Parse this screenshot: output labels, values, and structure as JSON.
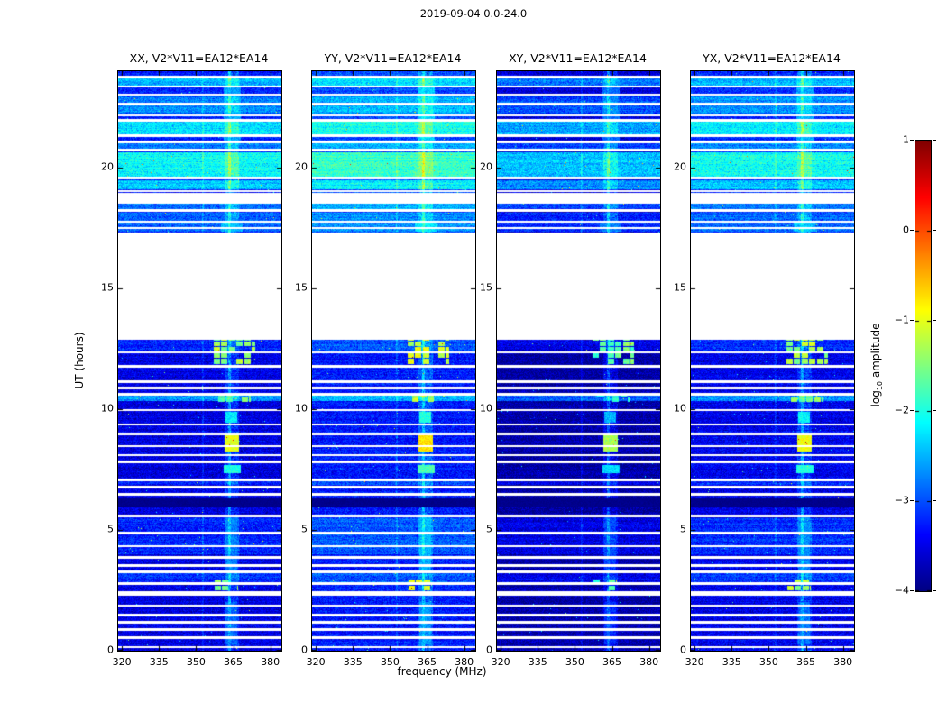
{
  "figure": {
    "colorbar_label_prefix": "log",
    "colorbar_label_sub": "10",
    "colorbar_label_suffix": " amplitude"
  },
  "chart_data": {
    "type": "heatmap",
    "title": "2019-09-04 0.0-24.0",
    "xlabel": "frequency (MHz)",
    "ylabel": "UT (hours)",
    "panels": [
      {
        "label": "XX",
        "title": "XX, V2*V11=EA12*EA14",
        "level_offset": 0.0
      },
      {
        "label": "YY",
        "title": "YY, V2*V11=EA12*EA14",
        "level_offset": 0.25
      },
      {
        "label": "XY",
        "title": "XY, V2*V11=EA12*EA14",
        "level_offset": -0.3
      },
      {
        "label": "YX",
        "title": "YX, V2*V11=EA12*EA14",
        "level_offset": 0.05
      }
    ],
    "x_range": [
      318.5,
      384.5
    ],
    "y_range": [
      0,
      24
    ],
    "x_ticks": [
      320,
      335,
      350,
      365,
      380
    ],
    "y_ticks": [
      0,
      5,
      10,
      15,
      20
    ],
    "colormap": "jet",
    "frame_color": "#000000",
    "background_color": "#ffffff",
    "colorbar": {
      "label": "log10 amplitude",
      "range": [
        -4,
        1
      ],
      "ticks": [
        1,
        0,
        -1,
        -2,
        -3,
        -4
      ]
    },
    "time_gaps_hours": [
      [
        13.02,
        17.32
      ]
    ],
    "black_times_hours": [
      [
        5.95,
        6.3
      ]
    ],
    "flagged_times_hours": [
      [
        23.72,
        23.82
      ],
      [
        23.32,
        23.42
      ],
      [
        22.98,
        23.08
      ],
      [
        22.58,
        22.68
      ],
      [
        22.12,
        22.22
      ],
      [
        21.92,
        22.02
      ],
      [
        21.28,
        21.38
      ],
      [
        21.02,
        21.12
      ],
      [
        20.68,
        20.78
      ],
      [
        19.52,
        19.62
      ],
      [
        18.98,
        19.08
      ],
      [
        18.5,
        18.95
      ],
      [
        18.18,
        18.28
      ],
      [
        17.72,
        17.82
      ],
      [
        17.45,
        17.55
      ],
      [
        12.88,
        13.02
      ],
      [
        12.3,
        12.4
      ],
      [
        11.72,
        11.82
      ],
      [
        11.08,
        11.18
      ],
      [
        10.82,
        10.92
      ],
      [
        10.58,
        10.66
      ],
      [
        9.92,
        10.02
      ],
      [
        9.32,
        9.42
      ],
      [
        8.92,
        9.02
      ],
      [
        8.45,
        8.52
      ],
      [
        8.05,
        8.15
      ],
      [
        7.78,
        7.88
      ],
      [
        7.02,
        7.12
      ],
      [
        6.72,
        6.82
      ],
      [
        6.42,
        6.52
      ],
      [
        5.52,
        5.62
      ],
      [
        4.82,
        4.92
      ],
      [
        4.28,
        4.38
      ],
      [
        3.82,
        3.92
      ],
      [
        3.48,
        3.58
      ],
      [
        3.22,
        3.32
      ],
      [
        2.72,
        2.82
      ],
      [
        2.28,
        2.48
      ],
      [
        1.82,
        1.92
      ],
      [
        1.42,
        1.52
      ],
      [
        1.12,
        1.22
      ],
      [
        0.82,
        0.92
      ],
      [
        0.48,
        0.58
      ],
      [
        0.12,
        0.18
      ]
    ],
    "base_level": {
      "below_gap": -3.75,
      "above_gap": -3.5,
      "noise": 0.55
    },
    "enhanced_rows": [
      [
        23.42,
        23.72,
        0.75
      ],
      [
        22.25,
        22.95,
        0.55
      ],
      [
        21.4,
        21.9,
        1.0
      ],
      [
        20.8,
        21.0,
        0.5
      ],
      [
        19.65,
        20.65,
        1.15
      ],
      [
        19.1,
        19.5,
        0.85
      ],
      [
        18.3,
        18.5,
        0.45
      ],
      [
        17.35,
        18.15,
        0.35
      ],
      [
        12.42,
        12.86,
        0.3
      ],
      [
        10.35,
        10.56,
        0.85
      ],
      [
        6.85,
        7.0,
        0.3
      ],
      [
        4.0,
        5.5,
        0.3
      ],
      [
        2.85,
        3.2,
        0.35
      ]
    ],
    "rfi_band": {
      "f0": 361.5,
      "f1": 367.5,
      "boost": 0.35
    },
    "vertical_lines": [
      {
        "f": 352.8,
        "boost": 0.28
      },
      {
        "f": 363.4,
        "boost": 0.5
      }
    ],
    "rfi_blocks": [
      {
        "t0": 11.88,
        "t1": 12.86,
        "f0": 357,
        "f1": 374,
        "amp": -1.5,
        "grid": true
      },
      {
        "t0": 10.3,
        "t1": 10.58,
        "f0": 359,
        "f1": 372,
        "amp": -1.7,
        "grid": true
      },
      {
        "t0": 8.25,
        "t1": 9.05,
        "f0": 361.5,
        "f1": 367.5,
        "amp": -1.0,
        "grid": false
      },
      {
        "t0": 7.35,
        "t1": 7.7,
        "f0": 361,
        "f1": 368,
        "amp": -2.0,
        "grid": false
      },
      {
        "t0": 9.45,
        "t1": 9.9,
        "f0": 362,
        "f1": 366.5,
        "amp": -2.2,
        "grid": false
      },
      {
        "t0": 2.5,
        "t1": 3.0,
        "f0": 357.5,
        "f1": 367,
        "amp": -1.5,
        "grid": true
      },
      {
        "t0": 19.6,
        "t1": 20.6,
        "f0": 360,
        "f1": 369,
        "amp": -2.3,
        "grid": true
      },
      {
        "t0": 17.35,
        "t1": 17.75,
        "f0": 360,
        "f1": 369,
        "amp": -2.5,
        "grid": false
      },
      {
        "t0": 0.25,
        "t1": 2.0,
        "f0": 362,
        "f1": 366.5,
        "amp": -2.9,
        "grid": false
      },
      {
        "t0": 3.3,
        "t1": 5.6,
        "f0": 362,
        "f1": 366.5,
        "amp": -2.8,
        "grid": false
      },
      {
        "t0": 21.0,
        "t1": 23.8,
        "f0": 361,
        "f1": 368,
        "amp": -2.6,
        "grid": false
      }
    ]
  }
}
